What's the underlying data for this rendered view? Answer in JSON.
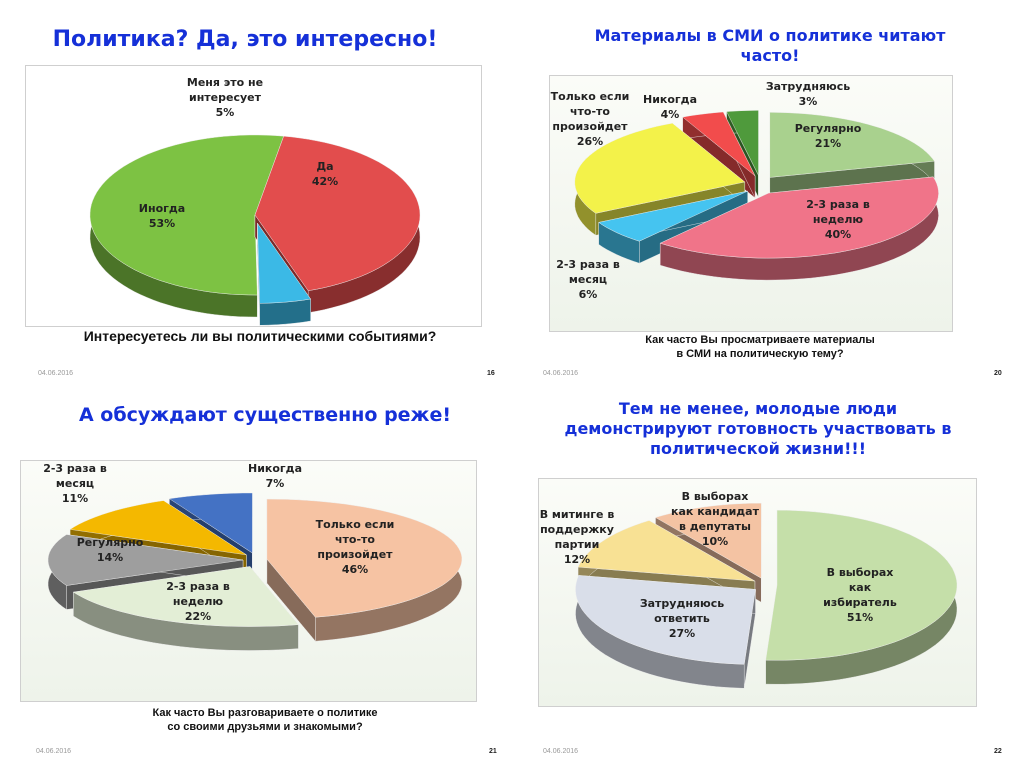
{
  "slides": [
    {
      "title": "Политика? Да, это интересно!",
      "question": "Интересуетесь ли вы политическими событиями?",
      "date": "04.06.2016",
      "page": "16"
    },
    {
      "title": "Материалы в СМИ о политике читают часто!",
      "question": "Как часто Вы просматриваете материалы\nв СМИ на политическую тему?",
      "date": "04.06.2016",
      "page": "20"
    },
    {
      "title": "А обсуждают существенно реже!",
      "question": "Как часто Вы разговариваете о политике\nсо своими друзьями и знакомыми?",
      "date": "04.06.2016",
      "page": "21"
    },
    {
      "title": "Тем не менее, молодые люди демонстрируют готовность участвовать в политической жизни!!!",
      "question": "",
      "date": "04.06.2016",
      "page": "22"
    }
  ],
  "chart_data": [
    {
      "type": "pie",
      "categories": [
        "Да",
        "Меня это не\nинтересует",
        "Иногда"
      ],
      "values": [
        42,
        5,
        53
      ],
      "value_labels": [
        "42%",
        "5%",
        "53%"
      ],
      "colors": [
        "#e24d4d",
        "#3bb9e6",
        "#7dc243"
      ],
      "exploded": [
        1
      ],
      "three_d": true
    },
    {
      "type": "pie",
      "categories": [
        "Регулярно",
        "2-3 раза в\nнеделю",
        "2-3 раза в\nмесяц",
        "Только если\nчто-то\nпроизойдет",
        "Никогда",
        "Затрудняюсь"
      ],
      "values": [
        21,
        40,
        6,
        26,
        4,
        3
      ],
      "value_labels": [
        "21%",
        "40%",
        "6%",
        "26%",
        "4%",
        "3%"
      ],
      "colors": [
        "#a9d18e",
        "#f07489",
        "#45c4f0",
        "#f3f24a",
        "#f24c4c",
        "#4f9a3c"
      ],
      "exploded": [
        0,
        1,
        2,
        3,
        4,
        5
      ],
      "three_d": true
    },
    {
      "type": "pie",
      "categories": [
        "Только если\nчто-то\nпроизойдет",
        "2-3 раза в\nнеделю",
        "Регулярно",
        "2-3 раза в\nмесяц",
        "Никогда"
      ],
      "values": [
        46,
        22,
        14,
        11,
        7
      ],
      "value_labels": [
        "46%",
        "22%",
        "14%",
        "11%",
        "7%"
      ],
      "colors": [
        "#f6c3a3",
        "#e3eed6",
        "#9e9e9e",
        "#f4b800",
        "#4472c4"
      ],
      "exploded": [
        0,
        1,
        2,
        3,
        4
      ],
      "three_d": true
    },
    {
      "type": "pie",
      "categories": [
        "В выборах\nкак\nизбиратель",
        "Затрудняюсь\nответить",
        "В митинге в\nподдержку\nпартии",
        "В выборах\nкак кандидат\nв депутаты"
      ],
      "values": [
        51,
        27,
        12,
        10
      ],
      "value_labels": [
        "51%",
        "27%",
        "12%",
        "10%"
      ],
      "colors": [
        "#c5dfa9",
        "#d9dee9",
        "#f8e194",
        "#f4c3a3"
      ],
      "exploded": [
        0,
        1,
        2,
        3
      ],
      "three_d": true
    }
  ]
}
